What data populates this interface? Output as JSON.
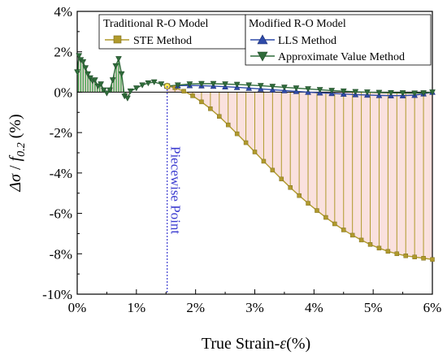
{
  "chart_data": {
    "type": "line",
    "xlabel_text": "True Strain-",
    "xlabel_symbol": "ε",
    "xlabel_unit": "(%)",
    "ylabel_symbol": "Δσ",
    "ylabel_slash": " / ",
    "ylabel_f": "f",
    "ylabel_sub": "0.2",
    "ylabel_unit": "(%)",
    "xlim": [
      0,
      6
    ],
    "ylim": [
      -10,
      4
    ],
    "x_ticks": [
      {
        "value": 0,
        "label": "0%"
      },
      {
        "value": 1,
        "label": "1%"
      },
      {
        "value": 2,
        "label": "2%"
      },
      {
        "value": 3,
        "label": "3%"
      },
      {
        "value": 4,
        "label": "4%"
      },
      {
        "value": 5,
        "label": "5%"
      },
      {
        "value": 6,
        "label": "6%"
      }
    ],
    "y_ticks": [
      {
        "value": 4,
        "label": "4%"
      },
      {
        "value": 2,
        "label": "2%"
      },
      {
        "value": 0,
        "label": "0%"
      },
      {
        "value": -2,
        "label": "-2%"
      },
      {
        "value": -4,
        "label": "-4%"
      },
      {
        "value": -6,
        "label": "-6%"
      },
      {
        "value": -8,
        "label": "-8%"
      },
      {
        "value": -10,
        "label": "-10%"
      }
    ],
    "grid": false,
    "piecewise_x": 1.52,
    "piecewise_label": "Piecewise Point",
    "legend": {
      "placement": "top",
      "group1_title": "Traditional R-O Model",
      "group2_title": "Modified R-O Model"
    },
    "series": [
      {
        "name": "STE Method",
        "color": "#b09a2c",
        "fill": "#f6c9c2",
        "marker": "square",
        "x": [
          1.52,
          1.65,
          1.8,
          1.95,
          2.1,
          2.25,
          2.4,
          2.55,
          2.7,
          2.85,
          3.0,
          3.15,
          3.3,
          3.45,
          3.6,
          3.75,
          3.9,
          4.05,
          4.2,
          4.35,
          4.5,
          4.65,
          4.8,
          4.95,
          5.1,
          5.25,
          5.4,
          5.55,
          5.7,
          5.85,
          6.0
        ],
        "y": [
          0.3,
          0.22,
          0.05,
          -0.18,
          -0.48,
          -0.82,
          -1.2,
          -1.62,
          -2.06,
          -2.5,
          -2.96,
          -3.42,
          -3.86,
          -4.3,
          -4.72,
          -5.12,
          -5.5,
          -5.86,
          -6.2,
          -6.52,
          -6.82,
          -7.08,
          -7.32,
          -7.54,
          -7.72,
          -7.88,
          -8.0,
          -8.1,
          -8.16,
          -8.22,
          -8.28
        ]
      },
      {
        "name": "LLS Method",
        "color": "#2e4aa8",
        "marker": "triangle-up",
        "x": [
          1.52,
          1.7,
          1.9,
          2.1,
          2.3,
          2.5,
          2.7,
          2.9,
          3.1,
          3.3,
          3.5,
          3.7,
          3.9,
          4.1,
          4.3,
          4.5,
          4.7,
          4.9,
          5.1,
          5.3,
          5.5,
          5.7,
          5.85,
          6.0
        ],
        "y": [
          0.3,
          0.32,
          0.33,
          0.32,
          0.3,
          0.27,
          0.24,
          0.2,
          0.16,
          0.12,
          0.08,
          0.04,
          0.0,
          -0.03,
          -0.06,
          -0.09,
          -0.12,
          -0.14,
          -0.16,
          -0.17,
          -0.17,
          -0.15,
          -0.08,
          0.0
        ]
      },
      {
        "name": "Approximate Value Method",
        "color": "#2f6b3a",
        "fill": "#3ea14a",
        "marker": "triangle-down",
        "x": [
          0.0,
          0.03,
          0.06,
          0.1,
          0.14,
          0.18,
          0.22,
          0.26,
          0.3,
          0.35,
          0.4,
          0.45,
          0.5,
          0.55,
          0.6,
          0.65,
          0.7,
          0.75,
          0.8,
          0.85,
          0.9,
          1.0,
          1.1,
          1.2,
          1.3,
          1.42,
          1.52,
          1.7,
          1.9,
          2.1,
          2.3,
          2.5,
          2.7,
          2.9,
          3.1,
          3.3,
          3.5,
          3.7,
          3.9,
          4.1,
          4.3,
          4.5,
          4.7,
          4.9,
          5.1,
          5.3,
          5.5,
          5.7,
          5.85,
          6.0
        ],
        "y": [
          1.0,
          1.8,
          1.6,
          1.5,
          1.2,
          0.9,
          0.7,
          0.55,
          0.6,
          0.3,
          0.4,
          0.1,
          -0.05,
          0.1,
          0.6,
          1.3,
          1.65,
          0.9,
          -0.2,
          -0.3,
          0.05,
          0.2,
          0.35,
          0.45,
          0.5,
          0.4,
          0.3,
          0.35,
          0.4,
          0.42,
          0.42,
          0.4,
          0.38,
          0.35,
          0.32,
          0.28,
          0.24,
          0.2,
          0.16,
          0.12,
          0.08,
          0.05,
          0.02,
          0.0,
          -0.02,
          -0.03,
          -0.04,
          -0.05,
          -0.04,
          0.0
        ]
      }
    ]
  }
}
